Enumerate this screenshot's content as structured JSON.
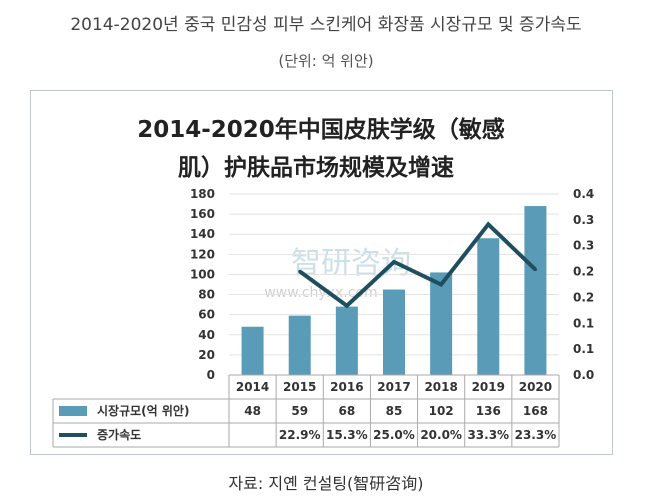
{
  "header": {
    "title": "2014-2020년 중국 민감성 피부 스킨케어 화장품 시장규모 및 증가속도",
    "unit": "(단위: 억 위안)"
  },
  "source": "자료: 지옌 컨설팅(智研咨询)",
  "watermark": {
    "brand": "智研咨询",
    "url": "www.chyxx.com"
  },
  "colors": {
    "bar": "#5a9bb8",
    "line": "#1f4e5f"
  },
  "chart_data": {
    "type": "bar",
    "title_line1": "2014-2020年中国皮肤学级（敏感",
    "title_line2": "肌）护肤品市场规模及增速",
    "categories": [
      "2014",
      "2015",
      "2016",
      "2017",
      "2018",
      "2019",
      "2020"
    ],
    "y_left": {
      "min": 0,
      "max": 180,
      "step": 20,
      "ticks": [
        "0",
        "20",
        "40",
        "60",
        "80",
        "100",
        "120",
        "140",
        "160",
        "180"
      ]
    },
    "y_right": {
      "min": 0,
      "max": 0.4,
      "ticks": [
        "0.0",
        "0.1",
        "0.1",
        "0.2",
        "0.2",
        "0.3",
        "0.3",
        "0.4"
      ]
    },
    "series": [
      {
        "name": "시장규모(억 위안)",
        "type": "bar",
        "values": [
          48,
          59,
          68,
          85,
          102,
          136,
          168
        ],
        "labels": [
          "48",
          "59",
          "68",
          "85",
          "102",
          "136",
          "168"
        ]
      },
      {
        "name": "증가속도",
        "type": "line",
        "values": [
          null,
          0.229,
          0.153,
          0.25,
          0.2,
          0.333,
          0.233
        ],
        "labels": [
          "",
          "22.9%",
          "15.3%",
          "25.0%",
          "20.0%",
          "33.3%",
          "23.3%"
        ]
      }
    ]
  }
}
